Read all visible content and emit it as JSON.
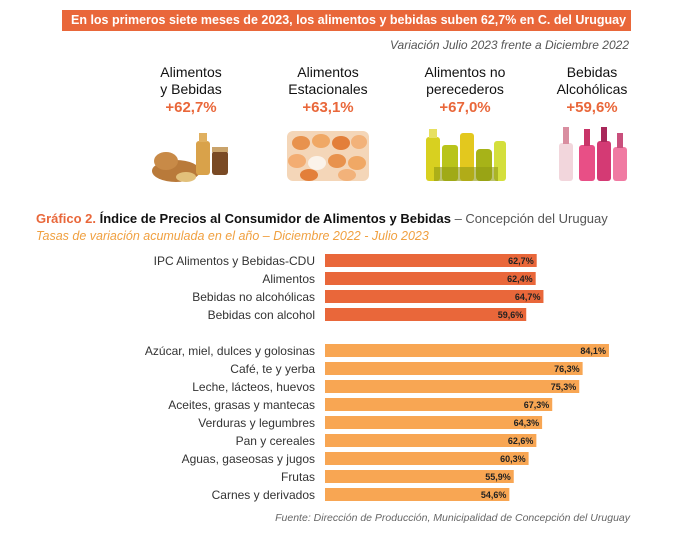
{
  "header": {
    "banner": "En los primeros siete meses de 2023, los alimentos y bebidas suben 62,7% en C. del Uruguay",
    "subtitle": "Variación Julio 2023 frente a Diciembre 2022"
  },
  "highlights": [
    {
      "label": "Alimentos\ny Bebidas",
      "value": "+62,7%",
      "icon": "food-basket-icon"
    },
    {
      "label": "Alimentos\nEstacionales",
      "value": "+63,1%",
      "icon": "eggs-icon"
    },
    {
      "label": "Alimentos no\nperecederos",
      "value": "+67,0%",
      "icon": "grocery-jars-icon"
    },
    {
      "label": "Bebidas\nAlcohólicas",
      "value": "+59,6%",
      "icon": "liquor-bottles-icon"
    }
  ],
  "colors": {
    "accent": "#e9673a",
    "bar_top": "#e9673a",
    "bar_bottom": "#f8a653",
    "subtitle": "#f0a040"
  },
  "chart_data": {
    "type": "bar",
    "orientation": "horizontal",
    "title_prefix": "Gráfico 2.",
    "title": "Índice de Precios al Consumidor de Alimentos y Bebidas",
    "title_suffix": "– Concepción del Uruguay",
    "subtitle": "Tasas de variación acumulada en el año – Diciembre 2022 - Julio 2023",
    "groups": [
      {
        "color": "#e9673a",
        "categories": [
          "IPC Alimentos y Bebidas-CDU",
          "Alimentos",
          "Bebidas no alcohólicas",
          "Bebidas con alcohol"
        ],
        "values": [
          62.7,
          62.4,
          64.7,
          59.6
        ],
        "labels": [
          "62,7%",
          "62,4%",
          "64,7%",
          "59,6%"
        ]
      },
      {
        "color": "#f8a653",
        "categories": [
          "Azúcar, miel, dulces y golosinas",
          "Café, te y yerba",
          "Leche, lácteos, huevos",
          "Aceites, grasas y mantecas",
          "Verduras y legumbres",
          "Pan y cereales",
          "Aguas, gaseosas y jugos",
          "Frutas",
          "Carnes y derivados"
        ],
        "values": [
          84.1,
          76.3,
          75.3,
          67.3,
          64.3,
          62.6,
          60.3,
          55.9,
          54.6
        ],
        "labels": [
          "84,1%",
          "76,3%",
          "75,3%",
          "67,3%",
          "64,3%",
          "62,6%",
          "60,3%",
          "55,9%",
          "54,6%"
        ]
      }
    ],
    "xlim": [
      0,
      85
    ],
    "grid": false,
    "legend": "none"
  },
  "footer": {
    "source": "Fuente: Dirección de Producción, Municipalidad de Concepción del Uruguay"
  }
}
